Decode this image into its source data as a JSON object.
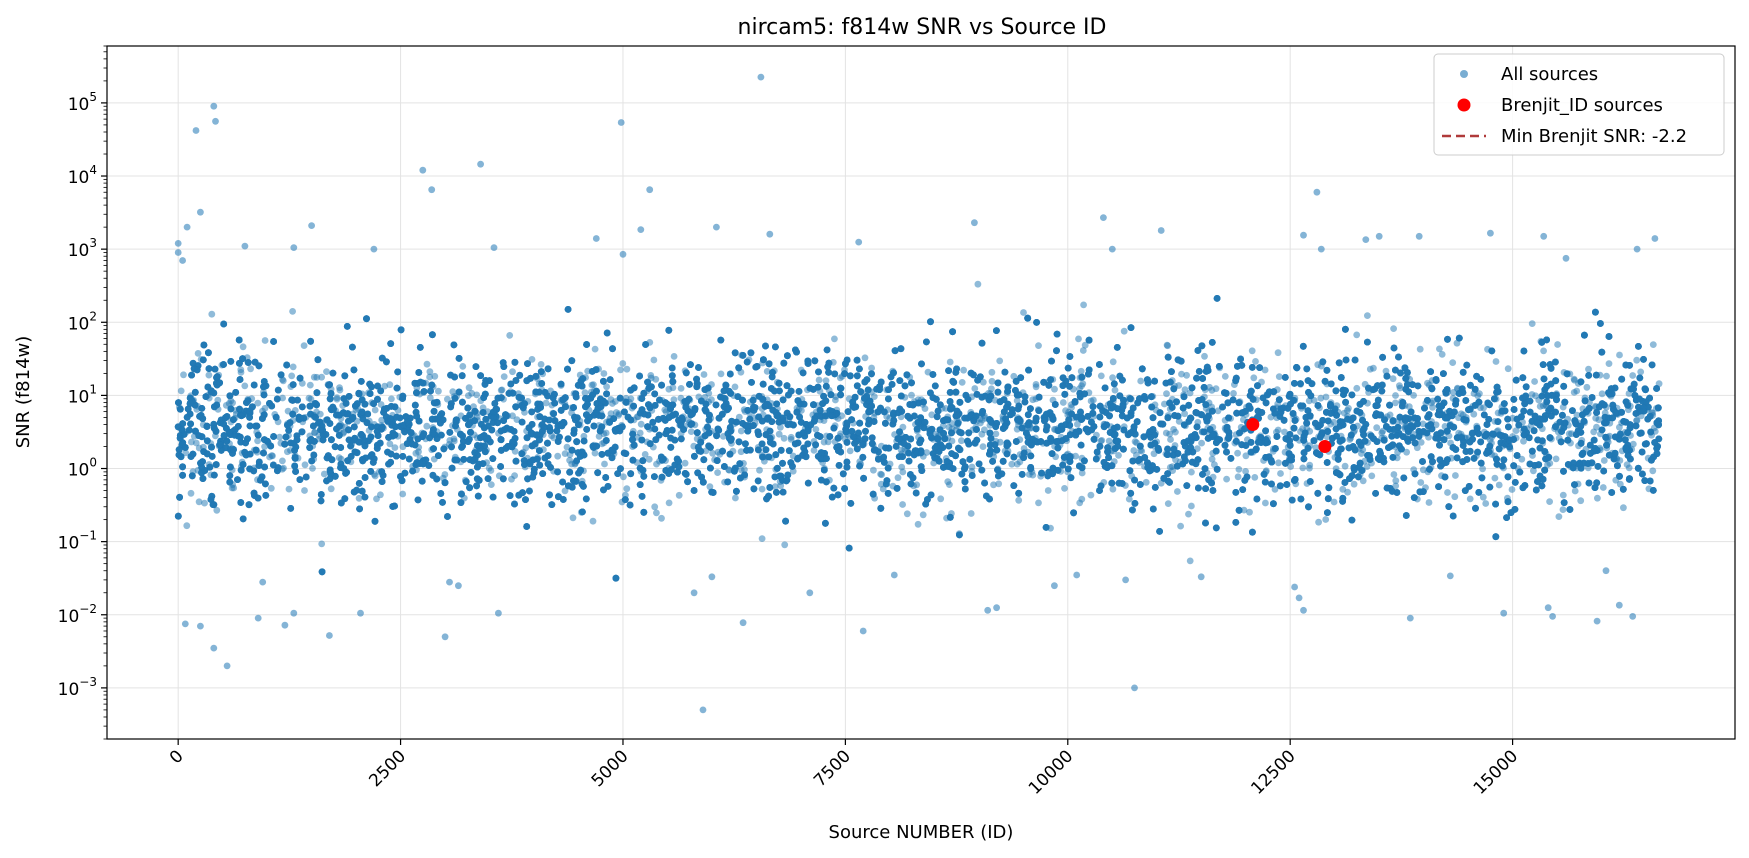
{
  "chart_data": {
    "type": "scatter",
    "title": "nircam5: f814w SNR vs Source ID",
    "xlabel": "Source NUMBER (ID)",
    "ylabel": "SNR (f814w)",
    "xlim": [
      -800,
      17500
    ],
    "ylim": [
      0.0002,
      600000
    ],
    "yscale": "log",
    "grid": true,
    "legend_position": "top-right",
    "x_ticks": [
      0,
      2500,
      5000,
      7500,
      10000,
      12500,
      15000
    ],
    "x_tick_labels": [
      "0",
      "2500",
      "5000",
      "7500",
      "10000",
      "12500",
      "15000"
    ],
    "y_ticks": [
      0.001,
      0.01,
      0.1,
      1,
      10,
      100,
      1000,
      10000,
      100000
    ],
    "y_tick_labels": [
      {
        "base": "10",
        "exp": "−3"
      },
      {
        "base": "10",
        "exp": "−2"
      },
      {
        "base": "10",
        "exp": "−1"
      },
      {
        "base": "10",
        "exp": "0"
      },
      {
        "base": "10",
        "exp": "1"
      },
      {
        "base": "10",
        "exp": "2"
      },
      {
        "base": "10",
        "exp": "3"
      },
      {
        "base": "10",
        "exp": "4"
      },
      {
        "base": "10",
        "exp": "5"
      }
    ],
    "series": [
      {
        "name": "All sources",
        "color": "#1f77b4",
        "note_source_count": 16600,
        "points": [
          [
            400,
            90000
          ],
          [
            420,
            56000
          ],
          [
            200,
            42000
          ],
          [
            6550,
            225000
          ],
          [
            4980,
            54000
          ],
          [
            3400,
            14500
          ],
          [
            2750,
            12000
          ],
          [
            2850,
            6500
          ],
          [
            5300,
            6500
          ],
          [
            12800,
            6000
          ],
          [
            250,
            3200
          ],
          [
            100,
            2000
          ],
          [
            1500,
            2100
          ],
          [
            6050,
            2000
          ],
          [
            8950,
            2300
          ],
          [
            10400,
            2700
          ],
          [
            11050,
            1800
          ],
          [
            5200,
            1850
          ],
          [
            4700,
            1400
          ],
          [
            6650,
            1600
          ],
          [
            7650,
            1250
          ],
          [
            12650,
            1550
          ],
          [
            13350,
            1350
          ],
          [
            13500,
            1500
          ],
          [
            13950,
            1500
          ],
          [
            14750,
            1650
          ],
          [
            15350,
            1500
          ],
          [
            16600,
            1400
          ],
          [
            16400,
            1000
          ],
          [
            750,
            1100
          ],
          [
            1300,
            1050
          ],
          [
            2200,
            1000
          ],
          [
            3550,
            1050
          ],
          [
            10500,
            1000
          ],
          [
            12850,
            1000
          ],
          [
            15600,
            750
          ],
          [
            5000,
            850
          ],
          [
            0,
            1200
          ],
          [
            0,
            900
          ],
          [
            50,
            700
          ],
          [
            5900,
            0.0005
          ],
          [
            10750,
            0.001
          ],
          [
            550,
            0.002
          ],
          [
            400,
            0.0035
          ],
          [
            250,
            0.007
          ],
          [
            80,
            0.0075
          ],
          [
            3000,
            0.005
          ],
          [
            1700,
            0.0052
          ],
          [
            6350,
            0.0078
          ],
          [
            7700,
            0.006
          ],
          [
            3600,
            0.0105
          ],
          [
            2050,
            0.0105
          ],
          [
            1300,
            0.0105
          ],
          [
            900,
            0.009
          ],
          [
            1200,
            0.0072
          ],
          [
            9100,
            0.0115
          ],
          [
            9200,
            0.0125
          ],
          [
            12650,
            0.0115
          ],
          [
            13850,
            0.009
          ],
          [
            14900,
            0.0105
          ],
          [
            15400,
            0.0125
          ],
          [
            15450,
            0.0095
          ],
          [
            15950,
            0.0082
          ],
          [
            16200,
            0.0135
          ],
          [
            16350,
            0.0095
          ],
          [
            950,
            0.028
          ],
          [
            3050,
            0.028
          ],
          [
            3150,
            0.025
          ],
          [
            12550,
            0.024
          ],
          [
            12600,
            0.017
          ],
          [
            7100,
            0.02
          ],
          [
            8050,
            0.035
          ],
          [
            9850,
            0.025
          ],
          [
            10100,
            0.035
          ],
          [
            10650,
            0.03
          ],
          [
            11500,
            0.033
          ],
          [
            14300,
            0.034
          ],
          [
            16050,
            0.04
          ],
          [
            5800,
            0.02
          ],
          [
            6000,
            0.033
          ]
        ]
      },
      {
        "name": "Brenjit_ID sources",
        "color": "#ff0000",
        "points": [
          [
            12080,
            4.0
          ],
          [
            12890,
            2.0
          ]
        ]
      }
    ],
    "legend": [
      {
        "label": "All sources",
        "marker": "dot",
        "color": "#1f77b4"
      },
      {
        "label": "Brenjit_ID sources",
        "marker": "dot",
        "color": "#ff0000"
      },
      {
        "label": "Min Brenjit SNR: -2.2",
        "marker": "dashed-line",
        "color": "#b03a3a"
      }
    ],
    "annotations": {
      "min_brenjit_snr_line": {
        "value": -2.2,
        "color": "#b03a3a",
        "style": "dashed",
        "note": "not visible on log axis"
      }
    }
  }
}
